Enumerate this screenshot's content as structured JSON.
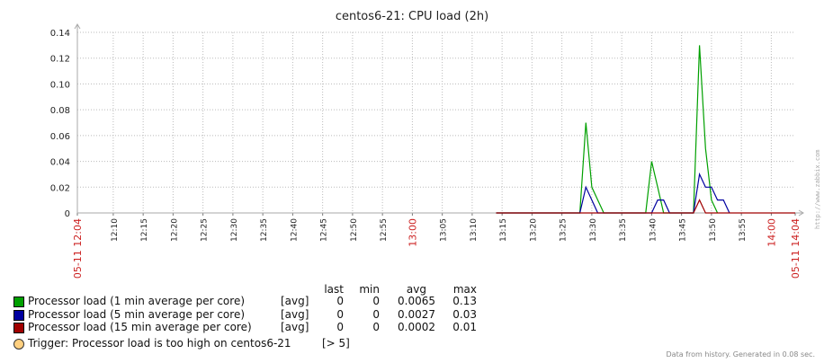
{
  "chart_data": {
    "type": "line",
    "title": "centos6-21: CPU load (2h)",
    "xlabel": "",
    "ylabel": "",
    "ylim": [
      0,
      0.14
    ],
    "y_ticks": [
      "0.14",
      "0.12",
      "0.10",
      "0.08",
      "0.06",
      "0.04",
      "0.02",
      "0"
    ],
    "xlim": [
      "12:04",
      "14:04"
    ],
    "x_ticks": [
      {
        "minute": 0,
        "label": "05-11 12:04",
        "highlight": true
      },
      {
        "minute": 6,
        "label": "12:10"
      },
      {
        "minute": 11,
        "label": "12:15"
      },
      {
        "minute": 16,
        "label": "12:20"
      },
      {
        "minute": 21,
        "label": "12:25"
      },
      {
        "minute": 26,
        "label": "12:30"
      },
      {
        "minute": 31,
        "label": "12:35"
      },
      {
        "minute": 36,
        "label": "12:40"
      },
      {
        "minute": 41,
        "label": "12:45"
      },
      {
        "minute": 46,
        "label": "12:50"
      },
      {
        "minute": 51,
        "label": "12:55"
      },
      {
        "minute": 56,
        "label": "13:00",
        "highlight": true
      },
      {
        "minute": 61,
        "label": "13:05"
      },
      {
        "minute": 66,
        "label": "13:10"
      },
      {
        "minute": 71,
        "label": "13:15"
      },
      {
        "minute": 76,
        "label": "13:20"
      },
      {
        "minute": 81,
        "label": "13:25"
      },
      {
        "minute": 86,
        "label": "13:30"
      },
      {
        "minute": 91,
        "label": "13:35"
      },
      {
        "minute": 96,
        "label": "13:40"
      },
      {
        "minute": 101,
        "label": "13:45"
      },
      {
        "minute": 106,
        "label": "13:50"
      },
      {
        "minute": 111,
        "label": "13:55"
      },
      {
        "minute": 116,
        "label": "14:00",
        "highlight": true
      },
      {
        "minute": 120,
        "label": "05-11 14:04",
        "highlight": true
      }
    ],
    "grid": true,
    "series": [
      {
        "name": "Processor load (1 min average per core)",
        "color": "#00a000",
        "points": [
          [
            70,
            0
          ],
          [
            84,
            0
          ],
          [
            85,
            0.07
          ],
          [
            86,
            0.02
          ],
          [
            87,
            0.01
          ],
          [
            88,
            0
          ],
          [
            95,
            0
          ],
          [
            96,
            0.04
          ],
          [
            97,
            0.02
          ],
          [
            98,
            0
          ],
          [
            103,
            0
          ],
          [
            104,
            0.13
          ],
          [
            105,
            0.05
          ],
          [
            106,
            0.01
          ],
          [
            107,
            0
          ]
        ]
      },
      {
        "name": "Processor load (5 min average per core)",
        "color": "#0000a0",
        "points": [
          [
            70,
            0
          ],
          [
            84,
            0
          ],
          [
            85,
            0.02
          ],
          [
            86,
            0.01
          ],
          [
            87,
            0
          ],
          [
            96,
            0
          ],
          [
            97,
            0.01
          ],
          [
            98,
            0.01
          ],
          [
            99,
            0
          ],
          [
            103,
            0
          ],
          [
            104,
            0.03
          ],
          [
            105,
            0.02
          ],
          [
            106,
            0.02
          ],
          [
            107,
            0.01
          ],
          [
            108,
            0.01
          ],
          [
            109,
            0
          ]
        ]
      },
      {
        "name": "Processor load (15 min average per core)",
        "color": "#a00000",
        "points": [
          [
            70,
            0
          ],
          [
            103,
            0
          ],
          [
            104,
            0.01
          ],
          [
            105,
            0
          ],
          [
            120,
            0
          ]
        ]
      }
    ]
  },
  "legend": {
    "headers": {
      "last": "last",
      "min": "min",
      "avg": "avg",
      "max": "max"
    },
    "rows": [
      {
        "name": "Processor load (1 min average per core)",
        "func": "[avg]",
        "last": "0",
        "min": "0",
        "avg": "0.0065",
        "max": "0.13",
        "color": "#00a000"
      },
      {
        "name": "Processor load (5 min average per core)",
        "func": "[avg]",
        "last": "0",
        "min": "0",
        "avg": "0.0027",
        "max": "0.03",
        "color": "#0000a0"
      },
      {
        "name": "Processor load (15 min average per core)",
        "func": "[avg]",
        "last": "0",
        "min": "0",
        "avg": "0.0002",
        "max": "0.01",
        "color": "#a00000"
      }
    ],
    "trigger": {
      "text": "Trigger: Processor load is too high on centos6-21",
      "value": "[> 5]",
      "color": "#ffd080"
    }
  },
  "footer": "Data from history. Generated in 0.08 sec.",
  "brand": "http://www.zabbix.com"
}
